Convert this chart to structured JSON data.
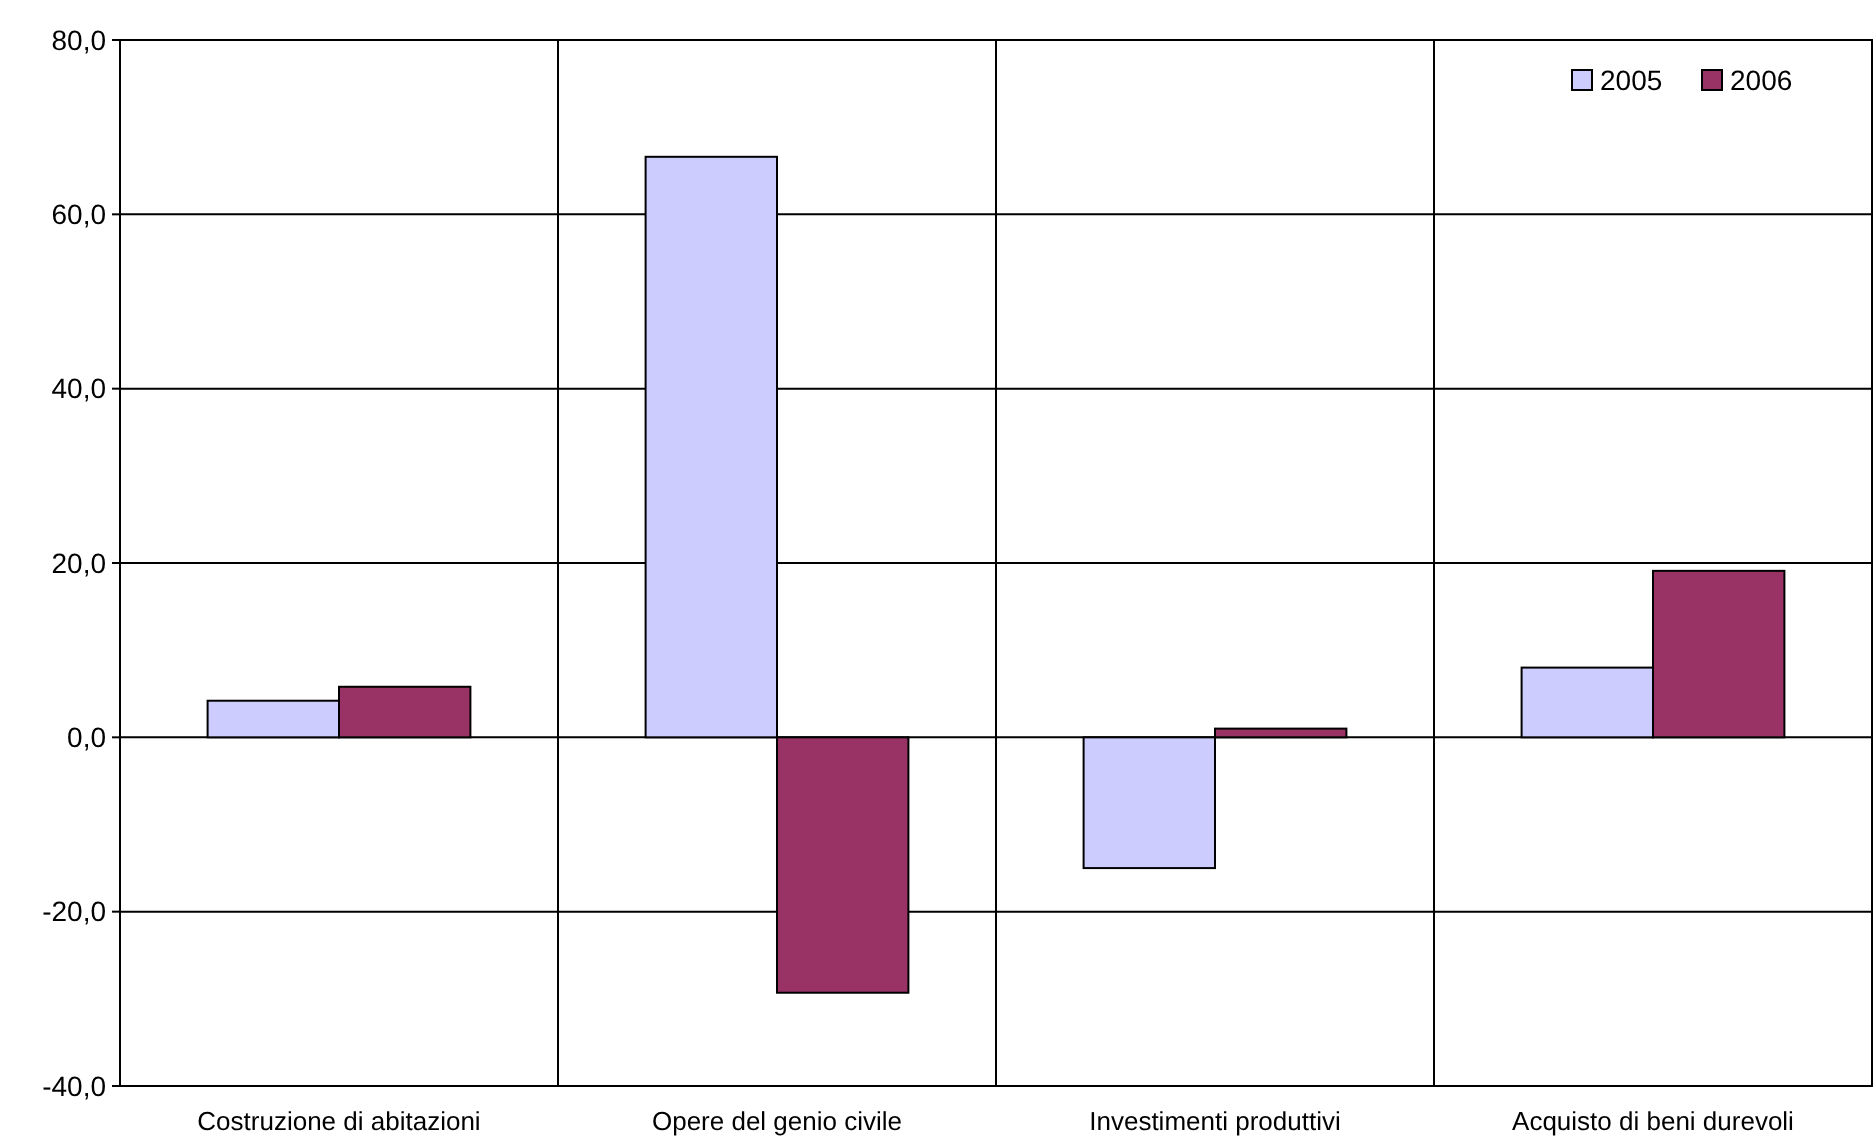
{
  "chart_data": {
    "type": "bar",
    "categories": [
      "Costruzione di abitazioni",
      "Opere del genio civile",
      "Investimenti produttivi",
      "Acquisto di beni durevoli"
    ],
    "series": [
      {
        "name": "2005",
        "color": "#ccccff",
        "values": [
          4.2,
          66.6,
          -15.0,
          8.0
        ]
      },
      {
        "name": "2006",
        "color": "#993366",
        "values": [
          5.8,
          -29.3,
          1.0,
          19.1
        ]
      }
    ],
    "ylim": [
      -40,
      80
    ],
    "yticks": [
      {
        "value": -40,
        "label": "-40,0"
      },
      {
        "value": -20,
        "label": "-20,0"
      },
      {
        "value": 0,
        "label": "0,0"
      },
      {
        "value": 20,
        "label": "20,0"
      },
      {
        "value": 40,
        "label": "40,0"
      },
      {
        "value": 60,
        "label": "60,0"
      },
      {
        "value": 80,
        "label": "80,0"
      }
    ],
    "grid": true,
    "legend": "top right"
  }
}
